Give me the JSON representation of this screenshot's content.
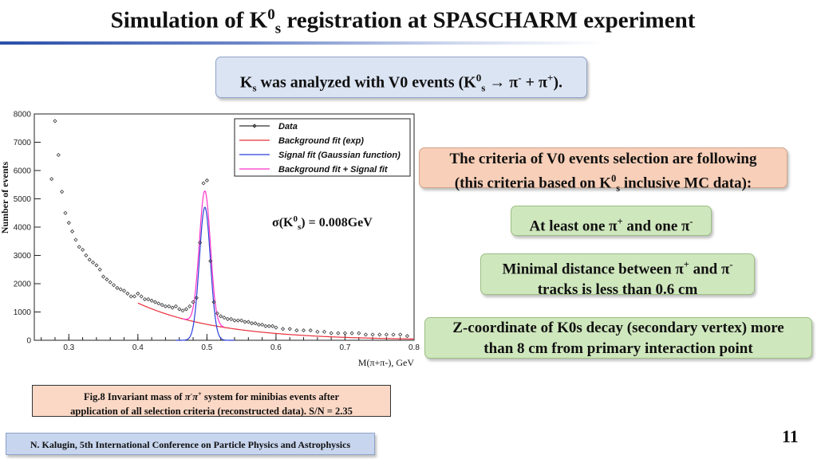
{
  "slide": {
    "title_a": "Simulation of K",
    "title_sup": "0",
    "title_sub": "s",
    "title_b": " registration at SPASCHARM experiment",
    "page_number": "11"
  },
  "intro": {
    "a": "K",
    "sup": "0",
    "sub": "s",
    "b": " was analyzed with V0 events (K",
    "sup2": "0",
    "sub2": "s",
    "c": " → π",
    "sup3": "-",
    "d": " + π",
    "sup4": "+",
    "e": ")."
  },
  "criteria_header": {
    "line1": "The criteria of V0 events selection are following",
    "line2_a": "(this criteria based on K",
    "line2_sup": "0",
    "line2_sub": "s",
    "line2_b": " inclusive MC data):"
  },
  "criteria": {
    "c1_a": "At least one π",
    "c1_sup": "+",
    "c1_b": " and one π",
    "c1_sup2": "-",
    "c2_a": "Minimal distance between π",
    "c2_sup": "+",
    "c2_b": " and π",
    "c2_sup2": "-",
    "c2_line2": "tracks is less than 0.6 cm",
    "c3_line1": "Z-coordinate of K0s decay (secondary vertex) more",
    "c3_line2": "than 8 cm from primary interaction point"
  },
  "caption": {
    "line1_a": "Fig.8 Invariant mass of ",
    "line1_pi": "π",
    "line1_sup": "-",
    "line1_pi2": "π",
    "line1_sup2": "+",
    "line1_b": " system for minibias events after",
    "line2": "application of all selection criteria (reconstructed data). S/N = 2.35"
  },
  "footer": {
    "text": "N. Kalugin, 5th International Conference on Particle Physics and Astrophysics"
  },
  "chart_data": {
    "type": "line",
    "ylabel": "Number of events",
    "xlabel": "M(π+π-), GeV",
    "xlim": [
      0.25,
      0.8
    ],
    "ylim": [
      0,
      8000
    ],
    "x_ticks": [
      0.3,
      0.4,
      0.5,
      0.6,
      0.7,
      0.8
    ],
    "y_ticks": [
      0,
      1000,
      2000,
      3000,
      4000,
      5000,
      6000,
      7000,
      8000
    ],
    "annotation": "σ(K0s) = 0.008GeV",
    "legend_position": "top-right",
    "colors": {
      "data": "#333333",
      "background_fit": "#e8303a",
      "signal_fit": "#2a3fd6",
      "total_fit": "#ff33cc"
    },
    "series": [
      {
        "name": "Data",
        "x": [
          0.275,
          0.28,
          0.285,
          0.29,
          0.295,
          0.3,
          0.305,
          0.31,
          0.315,
          0.32,
          0.325,
          0.33,
          0.335,
          0.34,
          0.345,
          0.35,
          0.355,
          0.36,
          0.365,
          0.37,
          0.375,
          0.38,
          0.385,
          0.39,
          0.395,
          0.4,
          0.405,
          0.41,
          0.415,
          0.42,
          0.425,
          0.43,
          0.435,
          0.44,
          0.445,
          0.45,
          0.455,
          0.46,
          0.465,
          0.47,
          0.475,
          0.48,
          0.485,
          0.49,
          0.495,
          0.5,
          0.505,
          0.51,
          0.515,
          0.52,
          0.525,
          0.53,
          0.535,
          0.54,
          0.545,
          0.55,
          0.555,
          0.56,
          0.565,
          0.57,
          0.575,
          0.58,
          0.585,
          0.59,
          0.595,
          0.6,
          0.61,
          0.62,
          0.63,
          0.64,
          0.65,
          0.66,
          0.67,
          0.68,
          0.69,
          0.7,
          0.71,
          0.72,
          0.73,
          0.74,
          0.75,
          0.76,
          0.77,
          0.78,
          0.79
        ],
        "y": [
          5700,
          7750,
          6550,
          5250,
          4500,
          4150,
          3850,
          3550,
          3300,
          3200,
          3000,
          2850,
          2750,
          2650,
          2500,
          2250,
          2150,
          2050,
          1950,
          1850,
          1800,
          1750,
          1650,
          1550,
          1550,
          1650,
          1550,
          1450,
          1450,
          1400,
          1350,
          1300,
          1250,
          1200,
          1200,
          1150,
          1200,
          1100,
          1050,
          1100,
          1200,
          1350,
          1500,
          3450,
          5550,
          5650,
          2800,
          1350,
          950,
          850,
          800,
          750,
          750,
          700,
          700,
          700,
          650,
          650,
          600,
          600,
          550,
          550,
          500,
          500,
          500,
          450,
          400,
          400,
          350,
          350,
          350,
          300,
          300,
          250,
          250,
          250,
          250,
          250,
          200,
          200,
          200,
          200,
          200,
          200,
          150
        ]
      },
      {
        "name": "Background fit (exp)"
      },
      {
        "name": "Signal fit (Gaussian function)",
        "mean": 0.497,
        "sigma": 0.008,
        "amplitude": 4700
      },
      {
        "name": "Background fit + Signal fit"
      }
    ]
  }
}
